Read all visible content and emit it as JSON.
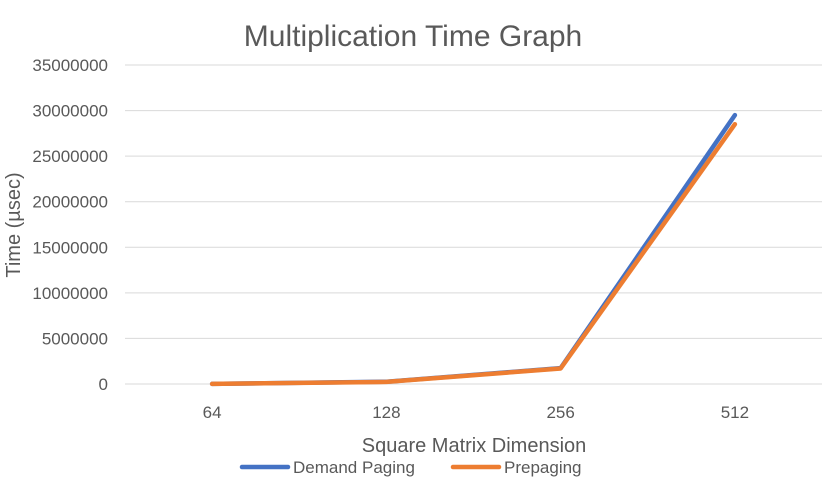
{
  "chart_data": {
    "type": "line",
    "title": "Multiplication Time Graph",
    "xlabel": "Square Matrix Dimension",
    "ylabel": "Time (µsec)",
    "categories": [
      "64",
      "128",
      "256",
      "512"
    ],
    "y_ticks": [
      "0",
      "5000000",
      "10000000",
      "15000000",
      "20000000",
      "25000000",
      "30000000",
      "35000000"
    ],
    "ylim": [
      0,
      35000000
    ],
    "grid": true,
    "legend_position": "bottom",
    "series": [
      {
        "name": "Demand Paging",
        "color": "#4472c4",
        "values": [
          10000,
          250000,
          1750000,
          29500000
        ]
      },
      {
        "name": "Prepaging",
        "color": "#ed7d31",
        "values": [
          10000,
          230000,
          1700000,
          28500000
        ]
      }
    ]
  }
}
